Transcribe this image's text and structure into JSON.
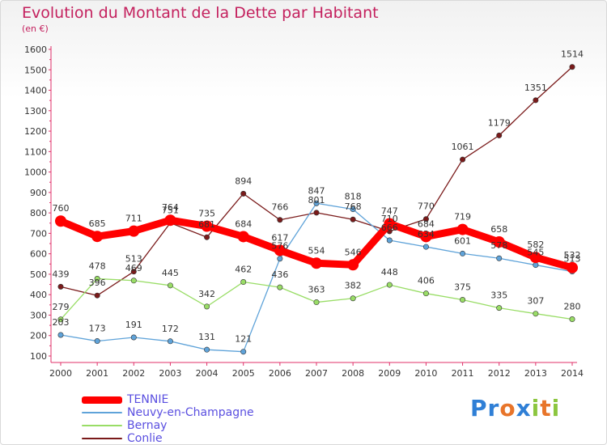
{
  "title": "Evolution du Montant de la Dette par Habitant",
  "unit": "(en €)",
  "logo": {
    "letters": [
      "P",
      "r",
      "o",
      "x",
      "i",
      "t",
      "i"
    ],
    "colors": [
      "#2f7fd6",
      "#2f7fd6",
      "#e8752a",
      "#2f7fd6",
      "#8cc63f",
      "#e8752a",
      "#8cc63f"
    ]
  },
  "chart_data": {
    "type": "line",
    "x": [
      "2000",
      "2001",
      "2002",
      "2003",
      "2004",
      "2005",
      "2006",
      "2007",
      "2008",
      "2009",
      "2010",
      "2011",
      "2012",
      "2013",
      "2014"
    ],
    "ylim": [
      100,
      1600
    ],
    "yticks": [
      "100",
      "200",
      "300",
      "400",
      "500",
      "600",
      "700",
      "800",
      "900",
      "1000",
      "1100",
      "1200",
      "1300",
      "1400",
      "1500",
      "1600"
    ],
    "grid": false,
    "legend": "bottom-left",
    "series": [
      {
        "name": "TENNIE",
        "color": "#ff0000",
        "values": [
          760,
          685,
          711,
          764,
          735,
          684,
          617,
          554,
          546,
          747,
          684,
          719,
          658,
          582,
          532
        ],
        "labels": [
          "760",
          "685",
          "711",
          "764",
          "735",
          "684",
          "617",
          "554",
          "546",
          "747",
          "684",
          "719",
          "658",
          "582",
          "532"
        ]
      },
      {
        "name": "Neuvy-en-Champagne",
        "color": "#5fa3d9",
        "values": [
          203,
          173,
          191,
          172,
          131,
          121,
          576,
          847,
          818,
          666,
          634,
          601,
          578,
          545,
          513
        ],
        "labels": [
          "203",
          "173",
          "191",
          "172",
          "131",
          "121",
          "576",
          "847",
          "818",
          "666",
          "634",
          "601",
          "578",
          "545",
          "513"
        ]
      },
      {
        "name": "Bernay",
        "color": "#99dd66",
        "values": [
          279,
          478,
          469,
          445,
          342,
          462,
          436,
          363,
          382,
          448,
          406,
          375,
          335,
          307,
          280
        ],
        "labels": [
          "279",
          "478",
          "469",
          "445",
          "342",
          "462",
          "436",
          "363",
          "382",
          "448",
          "406",
          "375",
          "335",
          "307",
          "280"
        ]
      },
      {
        "name": "Conlie",
        "color": "#7a1a1a",
        "values": [
          439,
          396,
          513,
          751,
          681,
          894,
          766,
          801,
          768,
          710,
          770,
          1061,
          1179,
          1351,
          1514
        ],
        "labels": [
          "439",
          "396",
          "513",
          "751",
          "681",
          "894",
          "766",
          "801",
          "768",
          "710",
          "770",
          "1061",
          "1179",
          "1351",
          "1514"
        ]
      }
    ]
  }
}
